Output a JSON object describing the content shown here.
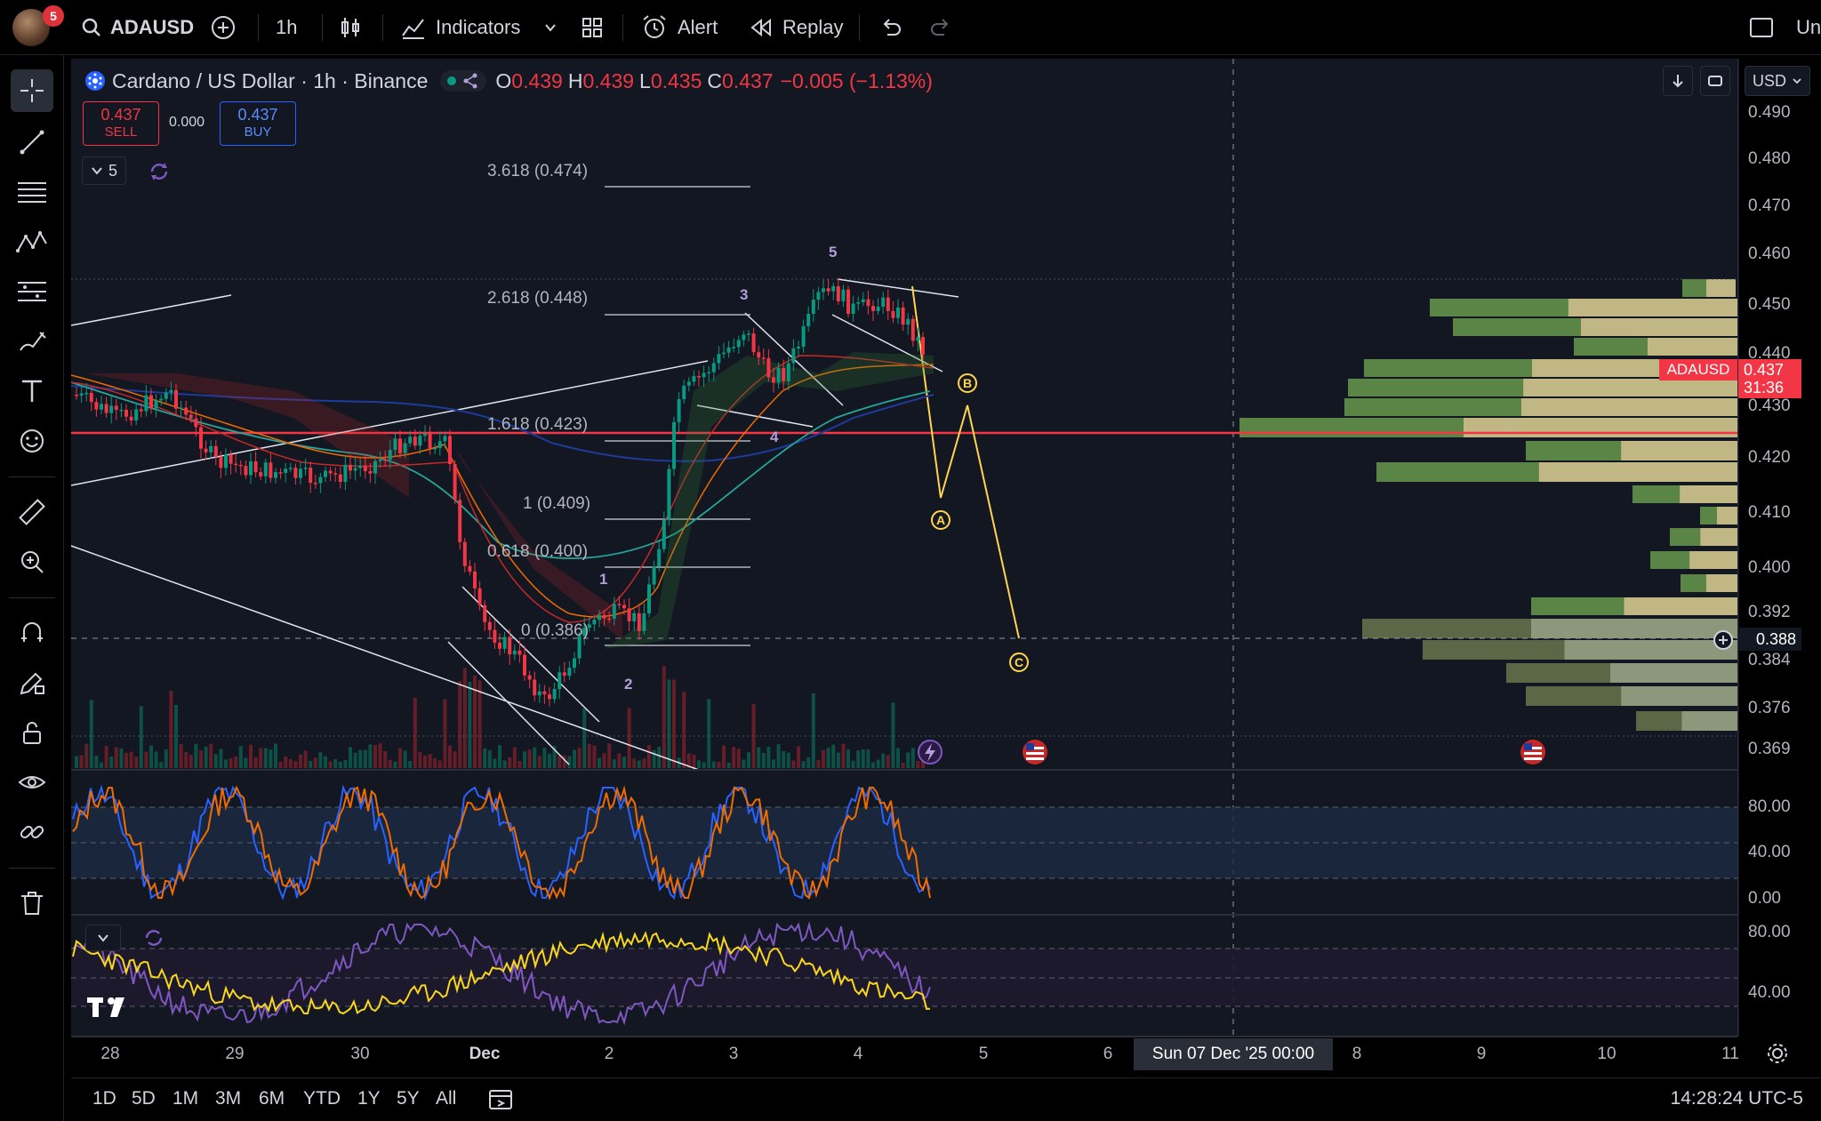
{
  "topbar": {
    "badge_count": "5",
    "symbol": "ADAUSD",
    "interval": "1h",
    "indicators_label": "Indicators",
    "alert_label": "Alert",
    "replay_label": "Replay",
    "cut_label": "Un"
  },
  "legend": {
    "title": "Cardano / US Dollar · 1h · Binance",
    "o_key": "O",
    "o_val": "0.439",
    "h_key": "H",
    "h_val": "0.439",
    "l_key": "L",
    "l_val": "0.435",
    "c_key": "C",
    "c_val": "0.437",
    "change": "−0.005 (−1.13%)"
  },
  "trade": {
    "sell_price": "0.437",
    "sell_label": "SELL",
    "spread": "0.000",
    "buy_price": "0.437",
    "buy_label": "BUY",
    "collapse_count": "5"
  },
  "price_axis": {
    "currency": "USD",
    "labels": [
      "0.490",
      "0.480",
      "0.470",
      "0.460",
      "0.450",
      "0.440",
      "0.430",
      "0.420",
      "0.410",
      "0.400",
      "0.392",
      "0.384",
      "0.376",
      "0.369"
    ],
    "current_symbol": "ADAUSD",
    "current_price": "0.437",
    "countdown": "31:36",
    "crosshair_price": "0.388"
  },
  "fib_levels": [
    "3.618 (0.474)",
    "2.618 (0.448)",
    "1.618 (0.423)",
    "1 (0.409)",
    "0.618 (0.400)",
    "0 (0.386)"
  ],
  "waves": [
    "1",
    "2",
    "3",
    "4",
    "5"
  ],
  "abc": [
    "A",
    "B",
    "C"
  ],
  "osc1_labels": [
    "80.00",
    "40.00",
    "0.00"
  ],
  "osc2_labels": [
    "80.00",
    "40.00"
  ],
  "time_axis": {
    "labels": [
      "28",
      "29",
      "30",
      "Dec",
      "2",
      "3",
      "4",
      "5",
      "6",
      "8",
      "9",
      "10",
      "11"
    ],
    "crosshair_time": "Sun 07 Dec '25   00:00"
  },
  "bottom": {
    "ranges": [
      "1D",
      "5D",
      "1M",
      "3M",
      "6M",
      "YTD",
      "1Y",
      "5Y",
      "All"
    ],
    "clock": "14:28:24 UTC-5"
  },
  "colors": {
    "up": "#089981",
    "down": "#f23645",
    "accent": "#2962ff",
    "projection": "#ffd54f"
  }
}
